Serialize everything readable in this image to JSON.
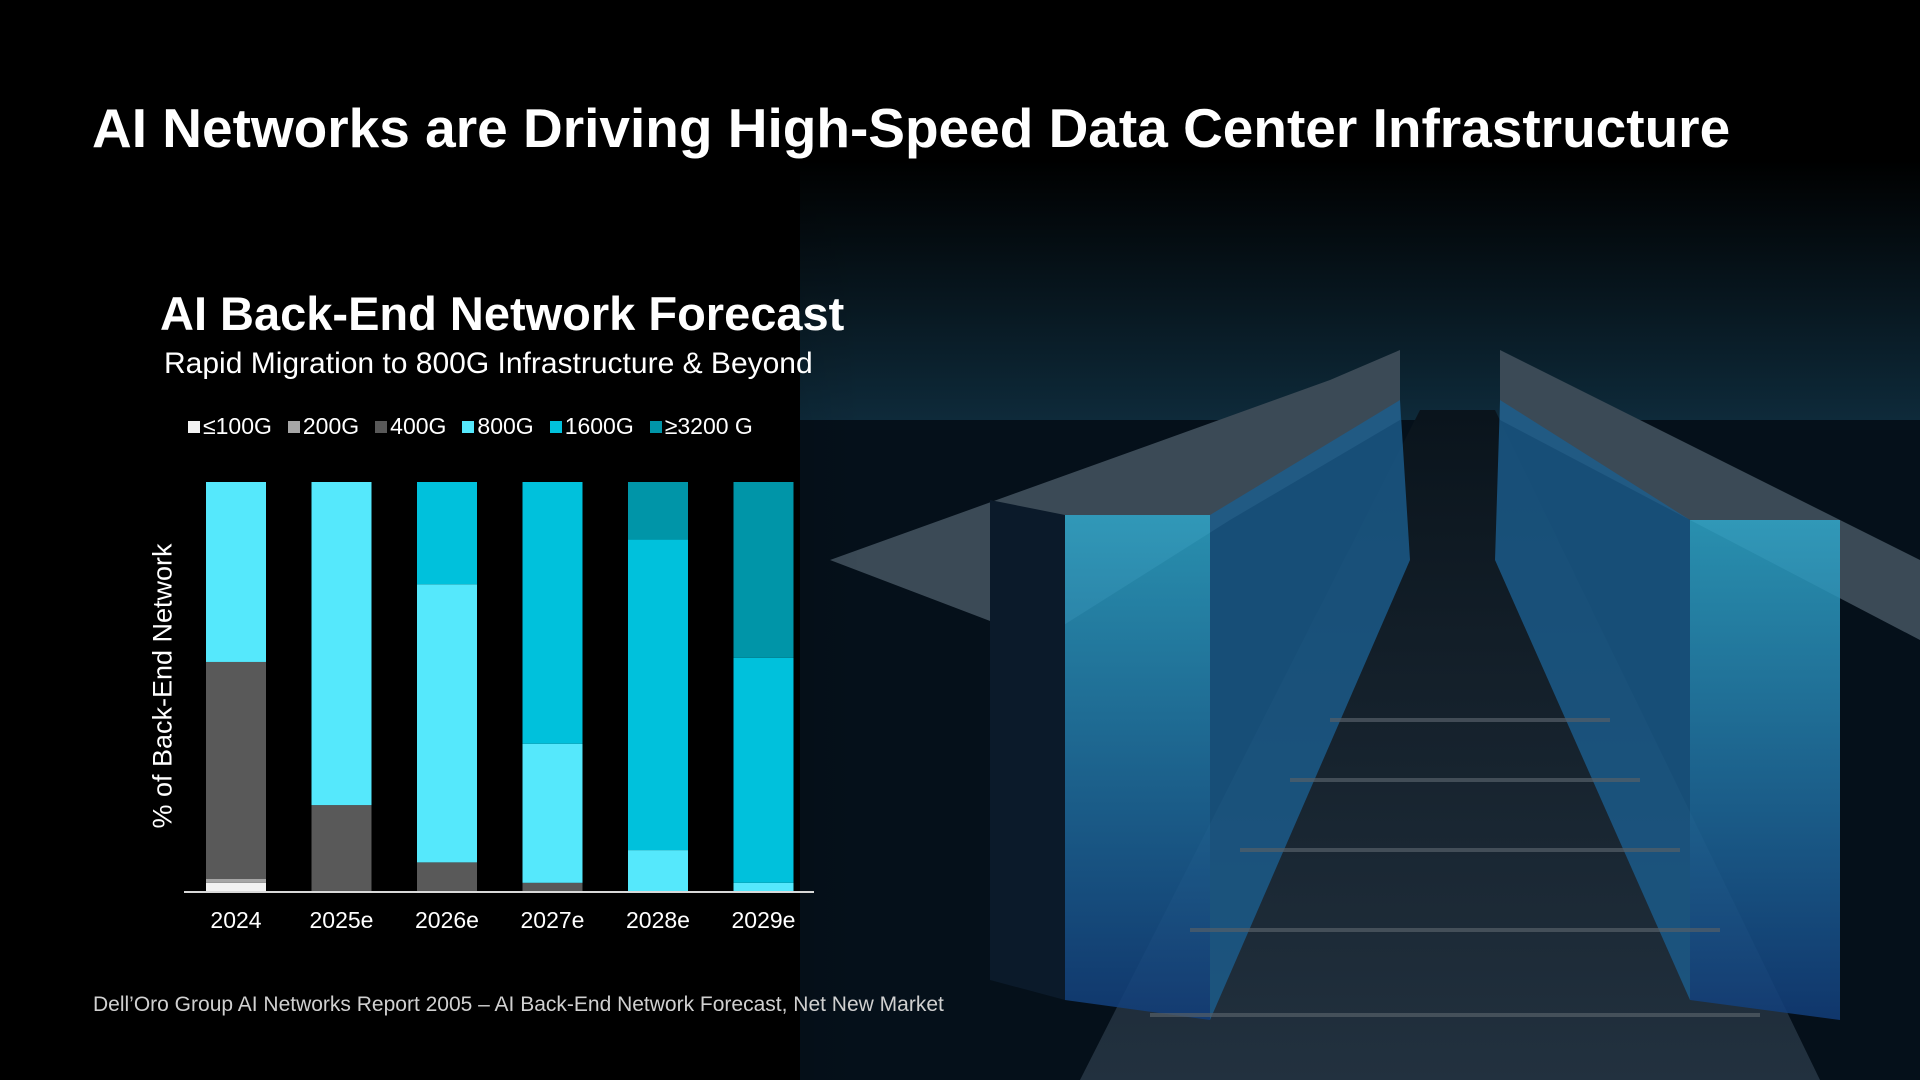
{
  "slide": {
    "title": "AI Networks are Driving High-Speed Data Center Infrastructure",
    "footer": "Dell’Oro Group AI Networks Report 2005 – AI Back-End Network Forecast, Net New Market"
  },
  "chart_data": {
    "type": "bar",
    "stacked": true,
    "title": "AI Back-End Network Forecast",
    "subtitle": "Rapid Migration to 800G Infrastructure & Beyond",
    "xlabel": "",
    "ylabel": "% of Back-End Network",
    "ylim": [
      0,
      100
    ],
    "grid": false,
    "legend_position": "top",
    "categories": [
      "2024",
      "2025e",
      "2026e",
      "2027e",
      "2028e",
      "2029e"
    ],
    "series": [
      {
        "name": "≤100G",
        "color": "#f2f2f2",
        "values": [
          2,
          0,
          0,
          0,
          0,
          0
        ]
      },
      {
        "name": "200G",
        "color": "#a6a6a6",
        "values": [
          1,
          0,
          0,
          0,
          0,
          0
        ]
      },
      {
        "name": "400G",
        "color": "#595959",
        "values": [
          53,
          21,
          7,
          2,
          0,
          0
        ]
      },
      {
        "name": "800G",
        "color": "#55e8fc",
        "values": [
          44,
          79,
          68,
          34,
          10,
          2
        ]
      },
      {
        "name": "1600G",
        "color": "#00c1dc",
        "values": [
          0,
          0,
          25,
          64,
          76,
          55
        ]
      },
      {
        "name": "≥3200 G",
        "color": "#0095a8",
        "values": [
          0,
          0,
          0,
          0,
          14,
          43
        ]
      }
    ]
  }
}
